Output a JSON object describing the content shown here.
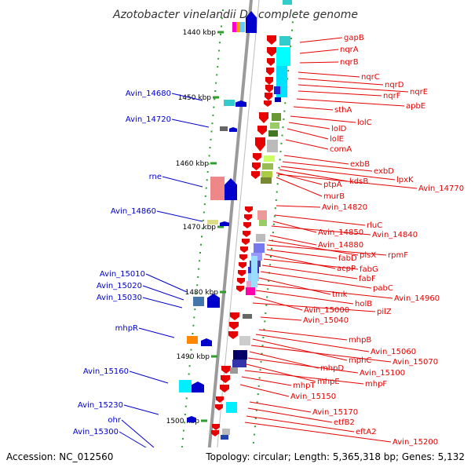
{
  "title": "Azotobacter vinelandii DJ, complete genome",
  "accession": "Accession: NC_012560",
  "topology": "Topology: circular; Length: 5,365,318 bp; Genes: 5,132",
  "colors": {
    "forward": "#e60000",
    "reverse": "#0000cc",
    "backbone": "#888888",
    "tick": "#2e9e2e"
  },
  "ticks": [
    {
      "label": "1440 kbp"
    },
    {
      "label": "1450 kbp"
    },
    {
      "label": "1460 kbp"
    },
    {
      "label": "1470 kbp"
    },
    {
      "label": "1480 kbp"
    },
    {
      "label": "1490 kbp"
    },
    {
      "label": "1500 kbp"
    }
  ],
  "left_labels": [
    {
      "text": "Avin_14680"
    },
    {
      "text": "Avin_14720"
    },
    {
      "text": "rne"
    },
    {
      "text": "Avin_14860"
    },
    {
      "text": "Avin_15010"
    },
    {
      "text": "Avin_15020"
    },
    {
      "text": "Avin_15030"
    },
    {
      "text": "mhpR"
    },
    {
      "text": "Avin_15160"
    },
    {
      "text": "Avin_15230"
    },
    {
      "text": "ohr"
    },
    {
      "text": "Avin_15300"
    }
  ],
  "right_labels": [
    {
      "text": "gapB"
    },
    {
      "text": "nqrA"
    },
    {
      "text": "nqrB"
    },
    {
      "text": "nqrC"
    },
    {
      "text": "nqrD"
    },
    {
      "text": "nqrE"
    },
    {
      "text": "nqrF"
    },
    {
      "text": "apbE"
    },
    {
      "text": "sthA"
    },
    {
      "text": "lolC"
    },
    {
      "text": "lolD"
    },
    {
      "text": "lolE"
    },
    {
      "text": "comA"
    },
    {
      "text": "exbB"
    },
    {
      "text": "exbD"
    },
    {
      "text": "lpxK"
    },
    {
      "text": "kdsB"
    },
    {
      "text": "ptpA"
    },
    {
      "text": "Avin_14770"
    },
    {
      "text": "murB"
    },
    {
      "text": "Avin_14820"
    },
    {
      "text": "rluC"
    },
    {
      "text": "Avin_14850"
    },
    {
      "text": "Avin_14840"
    },
    {
      "text": "Avin_14880"
    },
    {
      "text": "plsX"
    },
    {
      "text": "rpmF"
    },
    {
      "text": "fabD"
    },
    {
      "text": "acpP"
    },
    {
      "text": "fabG"
    },
    {
      "text": "fabF"
    },
    {
      "text": "pabC"
    },
    {
      "text": "tmk"
    },
    {
      "text": "Avin_14960"
    },
    {
      "text": "holB"
    },
    {
      "text": "Avin_15000"
    },
    {
      "text": "pilZ"
    },
    {
      "text": "Avin_15040"
    },
    {
      "text": "mhpB"
    },
    {
      "text": "Avin_15060"
    },
    {
      "text": "mphC"
    },
    {
      "text": "Avin_15070"
    },
    {
      "text": "mhpD"
    },
    {
      "text": "Avin_15100"
    },
    {
      "text": "mhpE"
    },
    {
      "text": "mhpF"
    },
    {
      "text": "mhpT"
    },
    {
      "text": "Avin_15150"
    },
    {
      "text": "Avin_15170"
    },
    {
      "text": "etfB2"
    },
    {
      "text": "eftA2"
    },
    {
      "text": "Avin_15200"
    }
  ]
}
